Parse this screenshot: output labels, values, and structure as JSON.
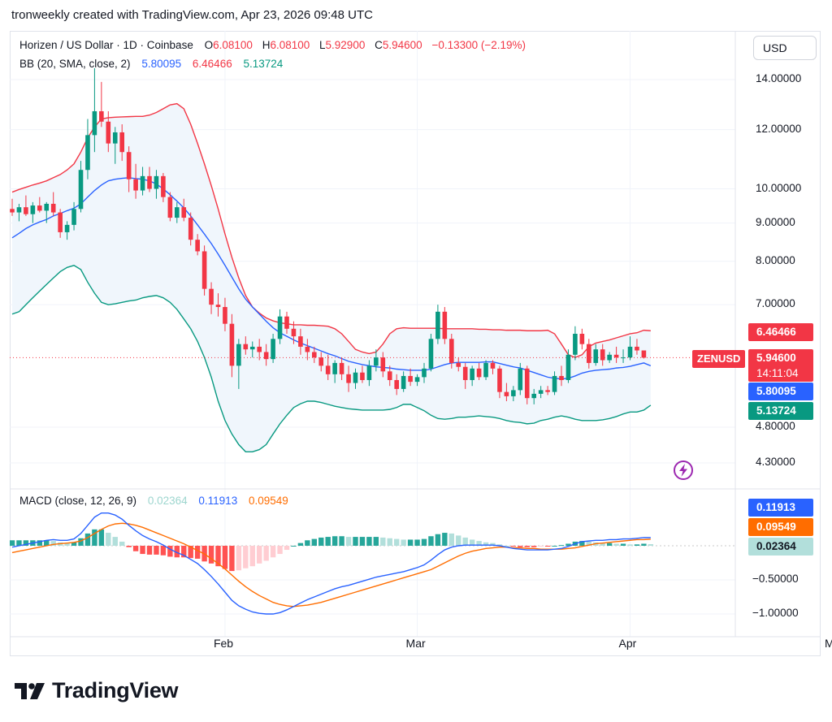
{
  "header": {
    "credit": "tronweekly created with TradingView.com, Apr 23, 2026 09:48 UTC"
  },
  "legend": {
    "symbol": "Horizen / US Dollar · 1D · Coinbase",
    "o_label": "O",
    "o_val": "6.08100",
    "h_label": "H",
    "h_val": "6.08100",
    "l_label": "L",
    "l_val": "5.92900",
    "c_label": "C",
    "c_val": "5.94600",
    "change": "−0.13300 (−2.19%)",
    "bb_label": "BB (20, SMA, close, 2)",
    "bb_basis": "5.80095",
    "bb_upper": "6.46466",
    "bb_lower": "5.13724",
    "macd_label": "MACD (close, 12, 26, 9)",
    "macd_hist": "0.02364",
    "macd_line": "0.11913",
    "macd_signal": "0.09549"
  },
  "currency_button": "USD",
  "price_labels": {
    "upper": "6.46466",
    "close": "5.94600",
    "countdown": "14:11:04",
    "basis": "5.80095",
    "lower": "5.13724",
    "symbol_tag": "ZENUSD"
  },
  "macd_labels": {
    "macd": "0.11913",
    "signal": "0.09549",
    "hist": "0.02364"
  },
  "logo": {
    "text": "TradingView"
  },
  "colors": {
    "up": "#089981",
    "down": "#f23645",
    "basis": "#2962ff",
    "upper": "#f23645",
    "lower": "#089981",
    "fill": "#f0f6fc",
    "macd": "#2962ff",
    "signal": "#ff6d00",
    "hist_up_strong": "#26a69a",
    "hist_up_weak": "#b2dfdb",
    "hist_down_strong": "#ff5252",
    "hist_down_weak": "#ffcdd2"
  },
  "chart_data": [
    {
      "type": "candlestick",
      "title": "Horizen / US Dollar · 1D · Coinbase",
      "scale": "log",
      "ylim": [
        3.9,
        15.2
      ],
      "y_ticks": [
        "14.00000",
        "12.00000",
        "10.00000",
        "9.00000",
        "8.00000",
        "7.00000",
        "4.80000",
        "4.30000"
      ],
      "y_tick_values": [
        14,
        12,
        10,
        9,
        8,
        7,
        4.8,
        4.3
      ],
      "x_ticks": [
        "Feb",
        "Mar",
        "Apr",
        "May"
      ],
      "x_tick_dates": [
        "2026-02-01",
        "2026-03-01",
        "2026-04-01",
        "2026-05-01"
      ],
      "start_date": "2026-01-01",
      "ohlc": [
        [
          9.4,
          9.7,
          9.2,
          9.3
        ],
        [
          9.3,
          9.55,
          9.05,
          9.45
        ],
        [
          9.45,
          9.8,
          9.2,
          9.25
        ],
        [
          9.25,
          9.6,
          9.0,
          9.5
        ],
        [
          9.5,
          9.75,
          9.3,
          9.35
        ],
        [
          9.35,
          9.6,
          9.0,
          9.55
        ],
        [
          9.55,
          9.9,
          9.2,
          9.3
        ],
        [
          9.3,
          9.4,
          8.6,
          8.75
        ],
        [
          8.75,
          9.05,
          8.55,
          8.95
        ],
        [
          8.95,
          9.6,
          8.8,
          9.4
        ],
        [
          9.4,
          10.9,
          9.3,
          10.6
        ],
        [
          10.6,
          12.4,
          10.3,
          11.8
        ],
        [
          11.8,
          14.5,
          11.2,
          12.7
        ],
        [
          12.7,
          13.9,
          12.1,
          12.3
        ],
        [
          12.3,
          12.7,
          11.2,
          11.5
        ],
        [
          11.5,
          12.1,
          10.8,
          11.9
        ],
        [
          11.9,
          12.2,
          10.9,
          11.2
        ],
        [
          11.2,
          11.4,
          9.9,
          10.3
        ],
        [
          10.3,
          10.8,
          9.7,
          9.95
        ],
        [
          9.95,
          10.7,
          9.8,
          10.4
        ],
        [
          10.4,
          10.7,
          9.9,
          10.0
        ],
        [
          10.0,
          10.6,
          9.7,
          10.4
        ],
        [
          10.4,
          10.5,
          9.6,
          9.75
        ],
        [
          9.75,
          9.9,
          9.05,
          9.15
        ],
        [
          9.15,
          9.6,
          9.0,
          9.45
        ],
        [
          9.45,
          9.7,
          9.05,
          9.15
        ],
        [
          9.15,
          9.3,
          8.4,
          8.55
        ],
        [
          8.55,
          8.7,
          8.15,
          8.25
        ],
        [
          8.25,
          8.4,
          7.2,
          7.35
        ],
        [
          7.35,
          7.5,
          6.8,
          7.0
        ],
        [
          7.0,
          7.25,
          6.75,
          6.95
        ],
        [
          6.95,
          7.15,
          6.45,
          6.6
        ],
        [
          6.6,
          6.8,
          5.6,
          5.8
        ],
        [
          5.8,
          6.3,
          5.4,
          6.2
        ],
        [
          6.2,
          6.35,
          6.0,
          6.1
        ],
        [
          6.1,
          6.25,
          5.95,
          6.15
        ],
        [
          6.15,
          6.3,
          5.9,
          6.05
        ],
        [
          6.05,
          6.2,
          5.8,
          5.92
        ],
        [
          5.92,
          6.4,
          5.85,
          6.3
        ],
        [
          6.3,
          6.9,
          6.2,
          6.75
        ],
        [
          6.75,
          6.85,
          6.4,
          6.5
        ],
        [
          6.5,
          6.65,
          6.2,
          6.35
        ],
        [
          6.35,
          6.5,
          6.0,
          6.15
        ],
        [
          6.15,
          6.3,
          5.9,
          6.05
        ],
        [
          6.05,
          6.15,
          5.85,
          5.95
        ],
        [
          5.95,
          6.05,
          5.7,
          5.8
        ],
        [
          5.8,
          6.0,
          5.55,
          5.65
        ],
        [
          5.65,
          5.9,
          5.5,
          5.85
        ],
        [
          5.85,
          5.95,
          5.55,
          5.65
        ],
        [
          5.65,
          5.8,
          5.35,
          5.5
        ],
        [
          5.5,
          5.75,
          5.4,
          5.68
        ],
        [
          5.68,
          5.8,
          5.5,
          5.55
        ],
        [
          5.55,
          5.9,
          5.45,
          5.8
        ],
        [
          5.8,
          6.1,
          5.7,
          5.95
        ],
        [
          5.95,
          6.05,
          5.6,
          5.7
        ],
        [
          5.7,
          5.8,
          5.45,
          5.55
        ],
        [
          5.55,
          5.65,
          5.3,
          5.4
        ],
        [
          5.4,
          5.7,
          5.35,
          5.62
        ],
        [
          5.62,
          5.75,
          5.45,
          5.52
        ],
        [
          5.52,
          5.65,
          5.45,
          5.6
        ],
        [
          5.6,
          5.85,
          5.5,
          5.75
        ],
        [
          5.75,
          6.4,
          5.7,
          6.3
        ],
        [
          6.3,
          7.0,
          6.2,
          6.85
        ],
        [
          6.85,
          6.95,
          6.2,
          6.3
        ],
        [
          6.3,
          6.4,
          5.75,
          5.85
        ],
        [
          5.85,
          5.95,
          5.7,
          5.78
        ],
        [
          5.78,
          5.85,
          5.4,
          5.55
        ],
        [
          5.55,
          5.8,
          5.45,
          5.75
        ],
        [
          5.75,
          5.85,
          5.55,
          5.6
        ],
        [
          5.6,
          5.9,
          5.55,
          5.85
        ],
        [
          5.85,
          5.9,
          5.65,
          5.75
        ],
        [
          5.75,
          5.8,
          5.25,
          5.35
        ],
        [
          5.35,
          5.5,
          5.2,
          5.28
        ],
        [
          5.28,
          5.45,
          5.2,
          5.38
        ],
        [
          5.38,
          5.85,
          5.3,
          5.75
        ],
        [
          5.75,
          5.8,
          5.15,
          5.25
        ],
        [
          5.25,
          5.4,
          5.15,
          5.32
        ],
        [
          5.32,
          5.45,
          5.25,
          5.38
        ],
        [
          5.38,
          5.45,
          5.3,
          5.35
        ],
        [
          5.35,
          5.7,
          5.3,
          5.62
        ],
        [
          5.62,
          5.8,
          5.45,
          5.55
        ],
        [
          5.55,
          6.1,
          5.5,
          6.0
        ],
        [
          6.0,
          6.55,
          5.9,
          6.4
        ],
        [
          6.4,
          6.5,
          6.1,
          6.2
        ],
        [
          6.2,
          6.3,
          5.75,
          5.85
        ],
        [
          5.85,
          6.2,
          5.8,
          6.1
        ],
        [
          6.1,
          6.2,
          5.8,
          5.9
        ],
        [
          5.9,
          6.05,
          5.85,
          6.0
        ],
        [
          6.0,
          6.15,
          5.85,
          5.95
        ],
        [
          5.95,
          6.1,
          5.85,
          5.95
        ],
        [
          5.95,
          6.35,
          5.9,
          6.15
        ],
        [
          6.15,
          6.3,
          6.0,
          6.08
        ],
        [
          6.08,
          6.08,
          5.93,
          5.946
        ]
      ],
      "bb_basis": [
        8.6,
        8.72,
        8.85,
        8.95,
        9.03,
        9.1,
        9.2,
        9.27,
        9.35,
        9.42,
        9.55,
        9.75,
        9.95,
        10.12,
        10.25,
        10.3,
        10.33,
        10.35,
        10.32,
        10.3,
        10.25,
        10.15,
        10.0,
        9.82,
        9.63,
        9.43,
        9.2,
        8.95,
        8.7,
        8.45,
        8.18,
        7.9,
        7.62,
        7.35,
        7.12,
        6.95,
        6.8,
        6.65,
        6.52,
        6.42,
        6.35,
        6.28,
        6.22,
        6.17,
        6.12,
        6.07,
        6.02,
        5.98,
        5.93,
        5.88,
        5.85,
        5.82,
        5.8,
        5.78,
        5.77,
        5.76,
        5.74,
        5.73,
        5.72,
        5.72,
        5.72,
        5.74,
        5.78,
        5.82,
        5.85,
        5.86,
        5.86,
        5.86,
        5.86,
        5.87,
        5.87,
        5.84,
        5.81,
        5.78,
        5.76,
        5.72,
        5.68,
        5.64,
        5.6,
        5.58,
        5.57,
        5.58,
        5.62,
        5.67,
        5.7,
        5.72,
        5.73,
        5.74,
        5.76,
        5.77,
        5.79,
        5.82,
        5.85,
        5.8
      ],
      "bb_upper": [
        9.9,
        9.98,
        10.05,
        10.12,
        10.18,
        10.25,
        10.35,
        10.45,
        10.6,
        10.8,
        11.2,
        11.7,
        12.1,
        12.4,
        12.45,
        12.47,
        12.48,
        12.49,
        12.5,
        12.5,
        12.55,
        12.65,
        12.8,
        12.95,
        13.0,
        12.8,
        12.2,
        11.5,
        10.8,
        10.1,
        9.4,
        8.7,
        8.1,
        7.6,
        7.2,
        6.95,
        6.82,
        6.72,
        6.66,
        6.62,
        6.6,
        6.58,
        6.58,
        6.57,
        6.57,
        6.56,
        6.55,
        6.5,
        6.4,
        6.25,
        6.1,
        6.05,
        6.02,
        6.05,
        6.2,
        6.4,
        6.5,
        6.52,
        6.51,
        6.51,
        6.51,
        6.51,
        6.51,
        6.5,
        6.5,
        6.5,
        6.5,
        6.5,
        6.49,
        6.49,
        6.48,
        6.48,
        6.47,
        6.47,
        6.47,
        6.46,
        6.46,
        6.46,
        6.47,
        6.4,
        6.2,
        6.0,
        5.95,
        6.0,
        6.15,
        6.22,
        6.25,
        6.28,
        6.32,
        6.36,
        6.4,
        6.42,
        6.47,
        6.46
      ],
      "bb_lower": [
        6.8,
        6.85,
        7.0,
        7.15,
        7.3,
        7.45,
        7.6,
        7.75,
        7.85,
        7.9,
        7.8,
        7.5,
        7.25,
        7.05,
        7.0,
        7.02,
        7.05,
        7.08,
        7.1,
        7.15,
        7.18,
        7.2,
        7.15,
        7.05,
        6.9,
        6.7,
        6.5,
        6.25,
        5.95,
        5.6,
        5.2,
        4.9,
        4.7,
        4.55,
        4.45,
        4.45,
        4.48,
        4.55,
        4.7,
        4.85,
        4.98,
        5.1,
        5.16,
        5.2,
        5.2,
        5.18,
        5.15,
        5.12,
        5.1,
        5.08,
        5.07,
        5.06,
        5.06,
        5.06,
        5.06,
        5.07,
        5.1,
        5.15,
        5.15,
        5.1,
        5.05,
        4.98,
        4.93,
        4.92,
        4.93,
        4.95,
        4.95,
        4.96,
        4.97,
        4.96,
        4.95,
        4.93,
        4.9,
        4.88,
        4.87,
        4.85,
        4.86,
        4.9,
        4.92,
        4.95,
        4.97,
        4.95,
        4.92,
        4.9,
        4.9,
        4.9,
        4.91,
        4.93,
        4.96,
        5.0,
        5.03,
        5.03,
        5.06,
        5.137
      ]
    },
    {
      "type": "macd",
      "title": "MACD (close, 12, 26, 9)",
      "ylim": [
        -1.12,
        0.55
      ],
      "y_ticks": [
        "−0.50000",
        "−1.00000"
      ],
      "y_tick_values": [
        -0.5,
        -1.0
      ],
      "macd": [
        -0.02,
        0.0,
        0.02,
        0.04,
        0.06,
        0.08,
        0.09,
        0.08,
        0.08,
        0.1,
        0.18,
        0.3,
        0.42,
        0.48,
        0.48,
        0.45,
        0.39,
        0.3,
        0.22,
        0.15,
        0.1,
        0.06,
        0.01,
        -0.05,
        -0.1,
        -0.14,
        -0.2,
        -0.26,
        -0.35,
        -0.45,
        -0.56,
        -0.68,
        -0.8,
        -0.88,
        -0.93,
        -0.97,
        -0.99,
        -1.0,
        -1.0,
        -0.98,
        -0.94,
        -0.89,
        -0.84,
        -0.79,
        -0.75,
        -0.71,
        -0.67,
        -0.63,
        -0.6,
        -0.58,
        -0.55,
        -0.52,
        -0.49,
        -0.46,
        -0.44,
        -0.42,
        -0.4,
        -0.38,
        -0.35,
        -0.32,
        -0.28,
        -0.21,
        -0.13,
        -0.06,
        -0.02,
        0.0,
        0.01,
        0.01,
        0.01,
        0.01,
        0.01,
        0.0,
        -0.02,
        -0.04,
        -0.05,
        -0.06,
        -0.06,
        -0.06,
        -0.06,
        -0.05,
        -0.04,
        -0.01,
        0.03,
        0.06,
        0.07,
        0.08,
        0.08,
        0.09,
        0.09,
        0.1,
        0.1,
        0.11,
        0.12,
        0.11913
      ],
      "signal": [
        -0.1,
        -0.08,
        -0.06,
        -0.04,
        -0.02,
        0.0,
        0.02,
        0.03,
        0.04,
        0.05,
        0.07,
        0.12,
        0.18,
        0.24,
        0.29,
        0.32,
        0.33,
        0.32,
        0.3,
        0.27,
        0.23,
        0.19,
        0.15,
        0.11,
        0.07,
        0.03,
        -0.02,
        -0.07,
        -0.12,
        -0.19,
        -0.26,
        -0.34,
        -0.43,
        -0.52,
        -0.6,
        -0.67,
        -0.73,
        -0.78,
        -0.83,
        -0.86,
        -0.88,
        -0.89,
        -0.88,
        -0.87,
        -0.85,
        -0.83,
        -0.8,
        -0.77,
        -0.74,
        -0.71,
        -0.68,
        -0.65,
        -0.62,
        -0.59,
        -0.56,
        -0.53,
        -0.5,
        -0.47,
        -0.44,
        -0.41,
        -0.38,
        -0.35,
        -0.3,
        -0.25,
        -0.2,
        -0.15,
        -0.11,
        -0.08,
        -0.06,
        -0.04,
        -0.03,
        -0.02,
        -0.02,
        -0.03,
        -0.03,
        -0.04,
        -0.04,
        -0.05,
        -0.05,
        -0.05,
        -0.05,
        -0.04,
        -0.03,
        -0.01,
        0.01,
        0.03,
        0.04,
        0.05,
        0.06,
        0.07,
        0.08,
        0.09,
        0.09,
        0.09549
      ],
      "histogram": [
        0.08,
        0.08,
        0.08,
        0.08,
        0.08,
        0.08,
        0.07,
        0.05,
        0.04,
        0.05,
        0.11,
        0.18,
        0.24,
        0.24,
        0.19,
        0.13,
        0.06,
        -0.02,
        -0.08,
        -0.12,
        -0.13,
        -0.13,
        -0.14,
        -0.16,
        -0.17,
        -0.17,
        -0.18,
        -0.19,
        -0.23,
        -0.26,
        -0.3,
        -0.34,
        -0.37,
        -0.36,
        -0.33,
        -0.3,
        -0.26,
        -0.22,
        -0.17,
        -0.12,
        -0.06,
        0.0,
        0.04,
        0.08,
        0.1,
        0.12,
        0.13,
        0.14,
        0.14,
        0.13,
        0.13,
        0.13,
        0.13,
        0.13,
        0.12,
        0.11,
        0.1,
        0.09,
        0.09,
        0.09,
        0.1,
        0.14,
        0.17,
        0.19,
        0.18,
        0.15,
        0.12,
        0.09,
        0.07,
        0.05,
        0.04,
        0.02,
        0.0,
        -0.01,
        -0.02,
        -0.02,
        -0.02,
        -0.01,
        -0.01,
        0.0,
        0.01,
        0.03,
        0.06,
        0.07,
        0.06,
        0.05,
        0.04,
        0.04,
        0.03,
        0.03,
        0.02,
        0.02,
        0.03,
        0.02364
      ]
    }
  ]
}
